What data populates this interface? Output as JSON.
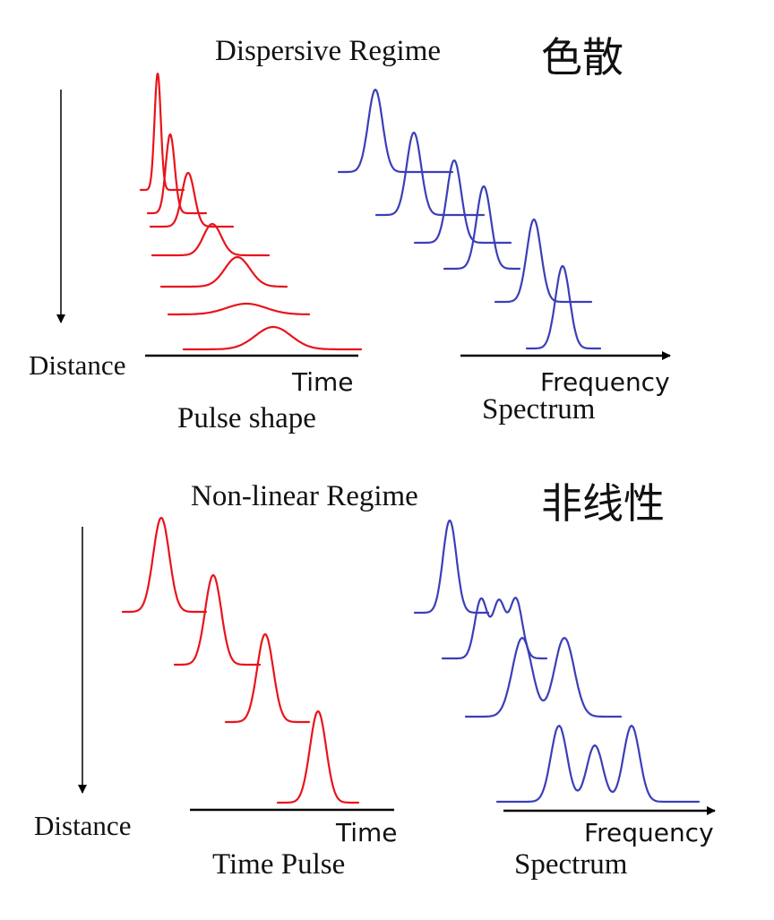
{
  "dispersive": {
    "title": "Dispersive Regime",
    "chinese": "色散",
    "distance_label": "Distance",
    "time_label": "Time",
    "pulse_label": "Pulse shape",
    "freq_label": "Frequency",
    "spectrum_label": "Spectrum"
  },
  "nonlinear": {
    "title": "Non-linear Regime",
    "chinese": "非线性",
    "distance_label": "Distance",
    "time_label": "Time",
    "pulse_label": "Time Pulse",
    "freq_label": "Frequency",
    "spectrum_label": "Spectrum"
  },
  "colors": {
    "pulse": "#e8141b",
    "spectrum": "#3b3fb8"
  }
}
